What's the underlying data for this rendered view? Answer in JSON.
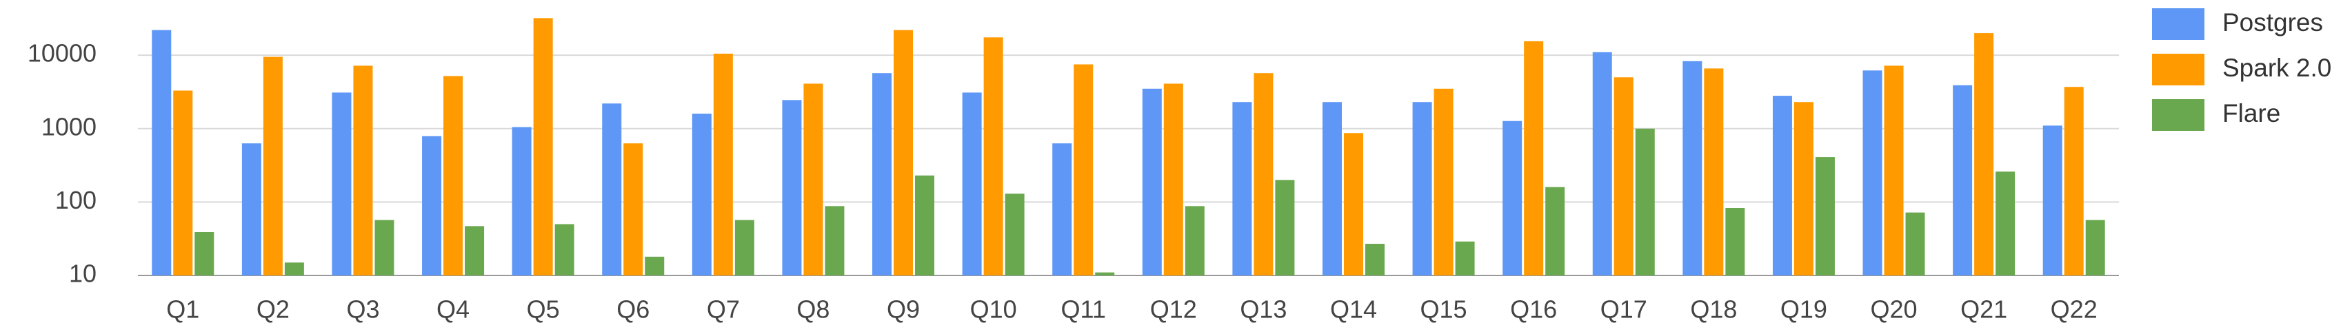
{
  "chart_data": {
    "type": "bar",
    "yscale": "log",
    "grid": true,
    "legend": "right",
    "categories": [
      "Q1",
      "Q2",
      "Q3",
      "Q4",
      "Q5",
      "Q6",
      "Q7",
      "Q8",
      "Q9",
      "Q10",
      "Q11",
      "Q12",
      "Q13",
      "Q14",
      "Q15",
      "Q16",
      "Q17",
      "Q18",
      "Q19",
      "Q20",
      "Q21",
      "Q22"
    ],
    "ylim": [
      10,
      40000
    ],
    "yticks": [
      10,
      100,
      1000,
      10000
    ],
    "series": [
      {
        "name": "Postgres",
        "color": "#5e97f6",
        "values": [
          22000,
          630,
          3100,
          790,
          1050,
          2200,
          1600,
          2450,
          5700,
          3100,
          630,
          3500,
          2300,
          2300,
          2300,
          1270,
          11000,
          8300,
          2800,
          6200,
          3900,
          1100
        ]
      },
      {
        "name": "Spark 2.0",
        "color": "#ff9a00",
        "values": [
          3300,
          9500,
          7200,
          5200,
          32000,
          630,
          10500,
          4100,
          22000,
          17500,
          7500,
          4100,
          5700,
          870,
          3500,
          15500,
          5000,
          6600,
          2300,
          7200,
          20000,
          3700
        ]
      },
      {
        "name": "Flare",
        "color": "#6aa84f",
        "values": [
          39,
          15,
          57,
          47,
          50,
          18,
          57,
          88,
          230,
          130,
          11,
          88,
          200,
          27,
          29,
          160,
          1000,
          83,
          410,
          72,
          260,
          57
        ]
      }
    ]
  }
}
